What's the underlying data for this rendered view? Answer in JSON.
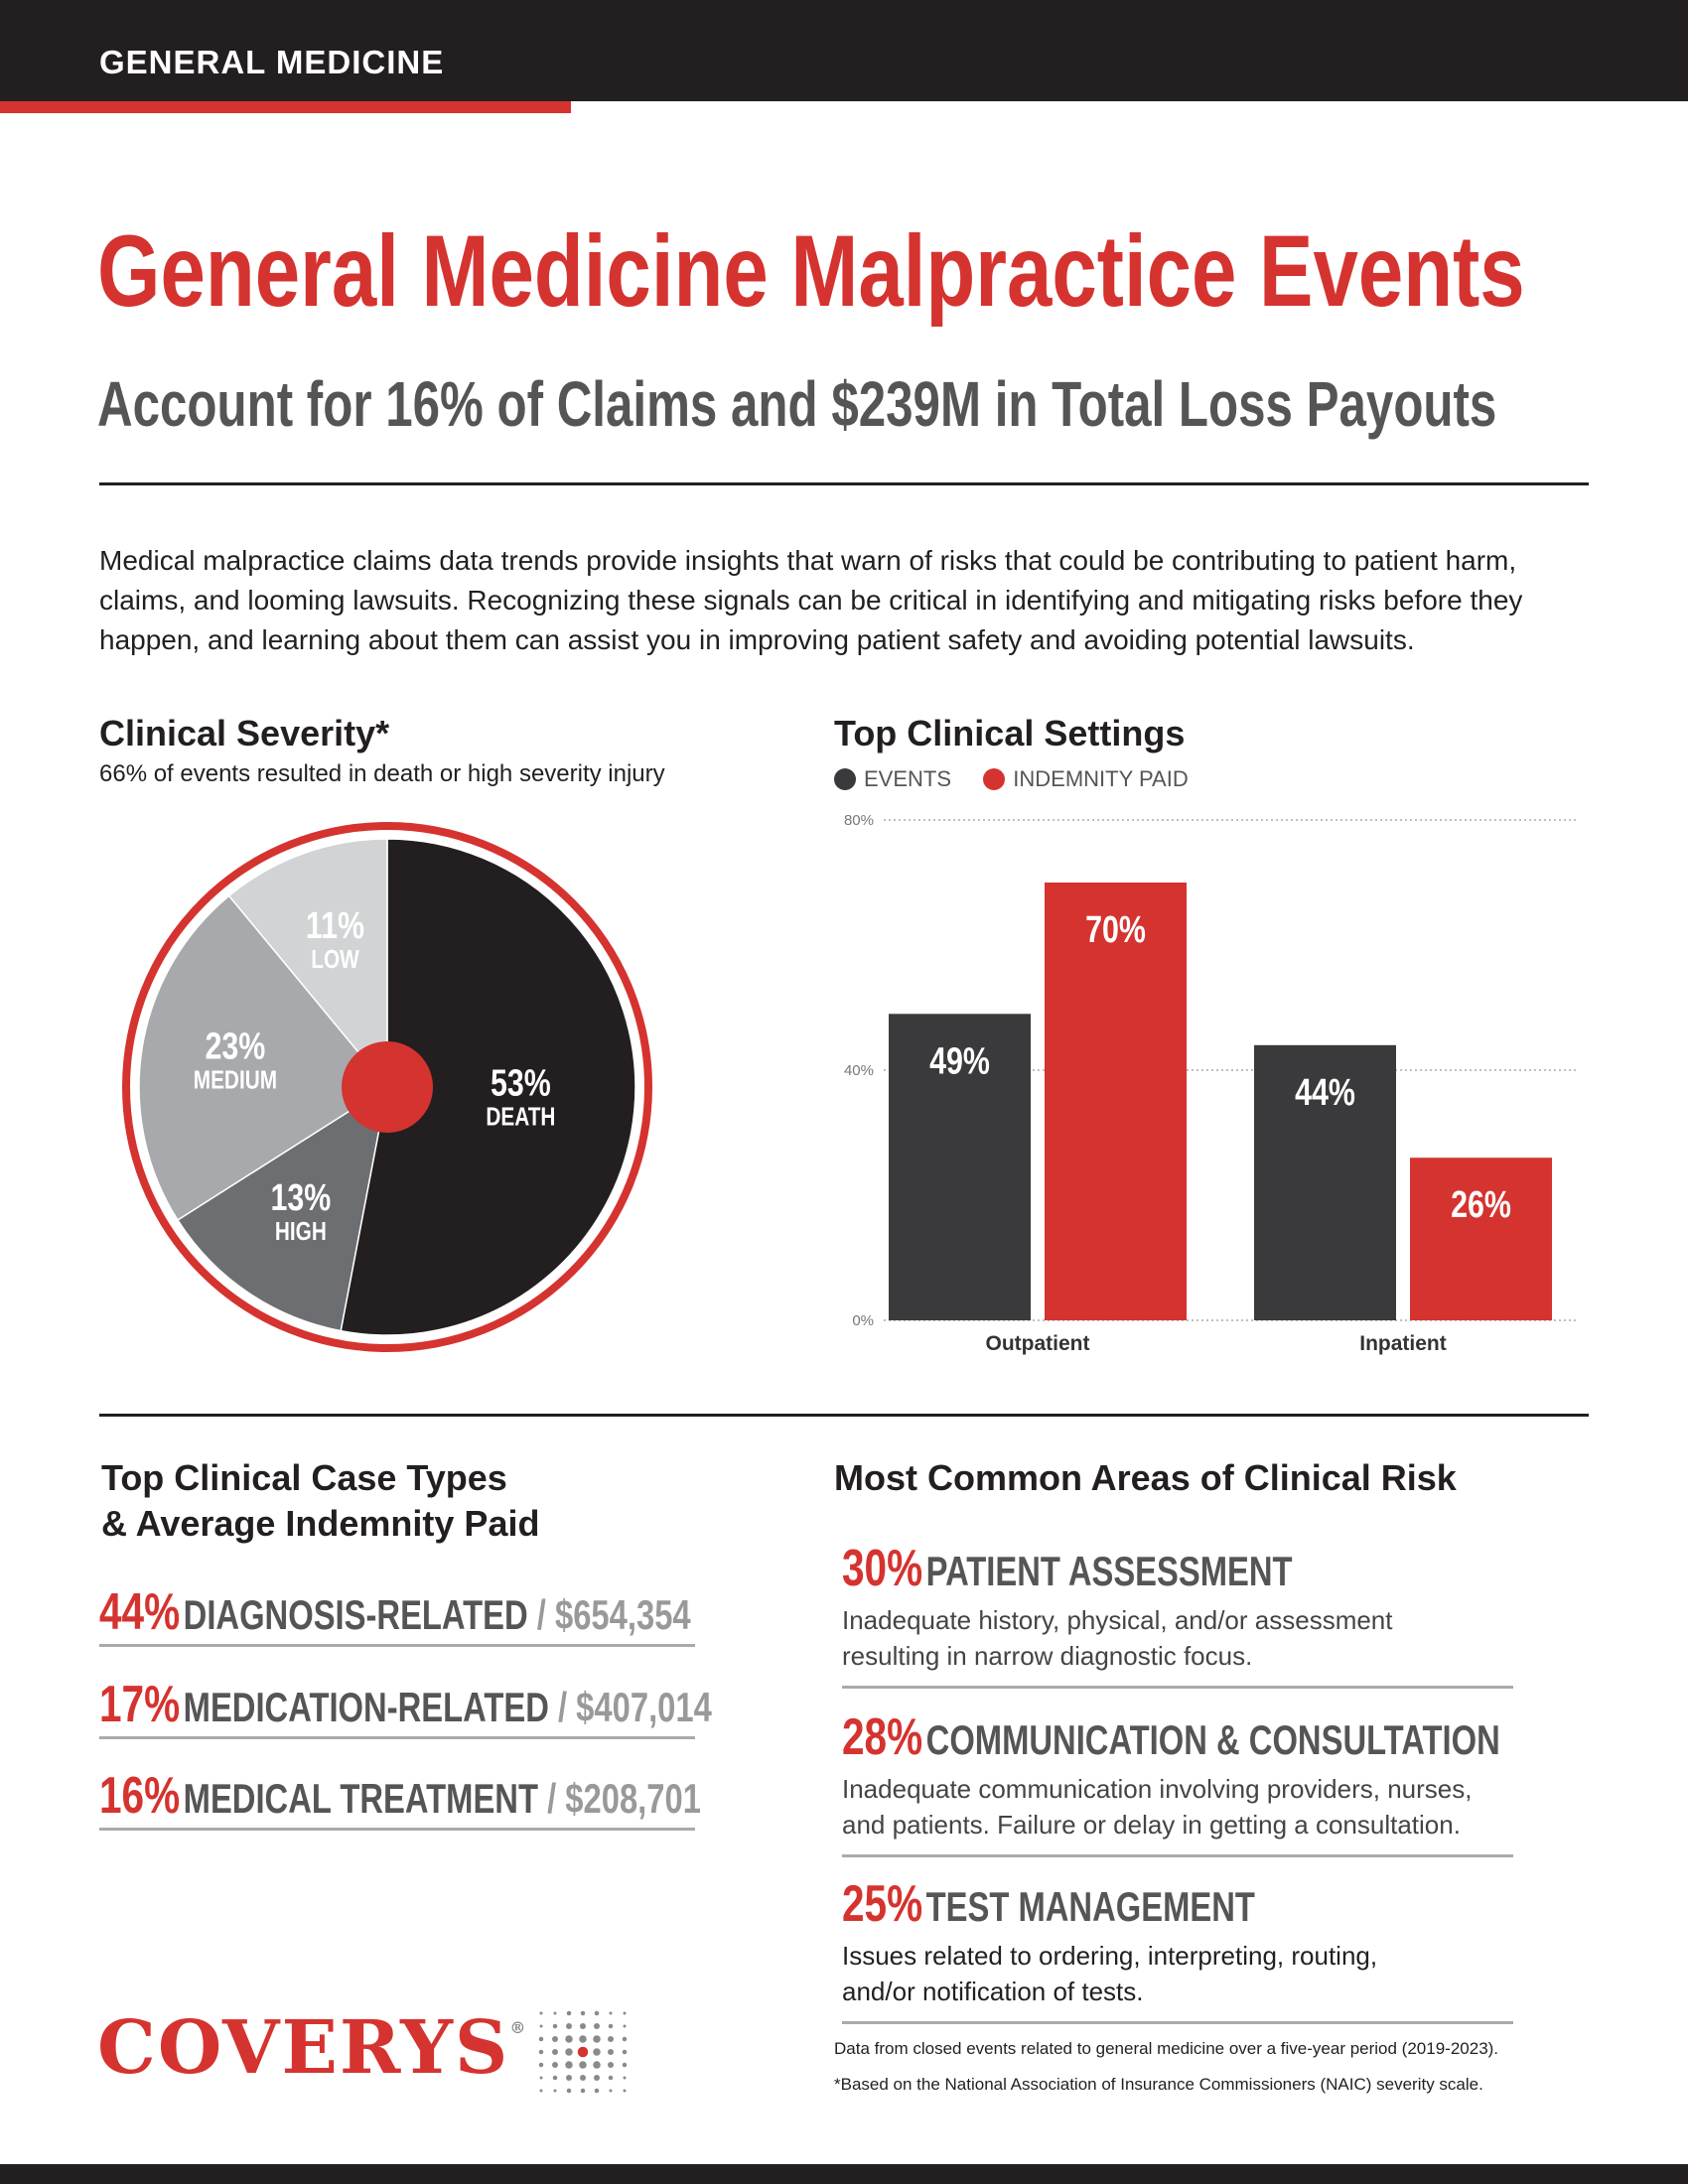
{
  "header": {
    "section_label": "GENERAL MEDICINE"
  },
  "headline": {
    "title": "General Medicine Malpractice Events",
    "subtitle": "Account for 16% of Claims and $239M in Total Loss Payouts"
  },
  "intro": "Medical malpractice claims data trends provide insights that warn of risks that could be contributing to patient harm, claims, and looming lawsuits. Recognizing these signals can be critical in identifying and mitigating risks before they happen, and learning about them can assist you in improving patient safety and avoiding potential lawsuits.",
  "colors": {
    "accent": "#d5332f",
    "dark": "#231f20",
    "bar_events": "#3a3a3c",
    "bar_indemnity": "#d5332f"
  },
  "severity": {
    "title": "Clinical Severity*",
    "subtitle": "66% of events resulted in death or high severity injury"
  },
  "settings": {
    "title": "Top Clinical Settings",
    "legend_events": "EVENTS",
    "legend_indemnity": "INDEMNITY PAID"
  },
  "chart_data": [
    {
      "type": "pie",
      "title": "Clinical Severity*",
      "categories": [
        "DEATH",
        "HIGH",
        "MEDIUM",
        "LOW"
      ],
      "values": [
        53,
        13,
        23,
        11
      ],
      "labels": [
        "53%",
        "13%",
        "23%",
        "11%"
      ],
      "colors": [
        "#231f20",
        "#6d6e71",
        "#a7a9ac",
        "#d1d3d4"
      ]
    },
    {
      "type": "bar",
      "title": "Top Clinical Settings",
      "categories": [
        "Outpatient",
        "Inpatient"
      ],
      "series": [
        {
          "name": "EVENTS",
          "values": [
            49,
            44
          ],
          "labels": [
            "49%",
            "44%"
          ]
        },
        {
          "name": "INDEMNITY PAID",
          "values": [
            70,
            26
          ],
          "labels": [
            "70%",
            "26%"
          ]
        }
      ],
      "yticks": [
        "80%",
        "40%",
        "0%"
      ],
      "ytick_values": [
        80,
        40,
        0
      ],
      "ylim": [
        0,
        80
      ]
    }
  ],
  "case_types": {
    "title_line1": "Top Clinical Case Types",
    "title_line2": "& Average Indemnity Paid",
    "items": [
      {
        "pct": "44%",
        "label": "DIAGNOSIS-RELATED",
        "sep": " / ",
        "amount": "$654,354"
      },
      {
        "pct": "17%",
        "label": "MEDICATION-RELATED",
        "sep": " / ",
        "amount": "$407,014"
      },
      {
        "pct": "16%",
        "label": "MEDICAL TREATMENT",
        "sep": " / ",
        "amount": "$208,701"
      }
    ]
  },
  "risk_areas": {
    "title": "Most Common Areas of Clinical Risk",
    "items": [
      {
        "pct": "30%",
        "label": "PATIENT ASSESSMENT",
        "line1": "Inadequate history, physical, and/or assessment",
        "line2": "resulting in narrow diagnostic focus."
      },
      {
        "pct": "28%",
        "label": "COMMUNICATION & CONSULTATION",
        "line1": "Inadequate communication involving providers, nurses,",
        "line2": "and patients. Failure or delay in getting a consultation."
      },
      {
        "pct": "25%",
        "label": "TEST MANAGEMENT",
        "line1": "Issues related to ordering, interpreting, routing,",
        "line2": "and/or notification of tests."
      }
    ]
  },
  "footer": {
    "logo": "COVERYS",
    "registered": "®",
    "note1": "Data from closed events related to general medicine over a five-year period (2019-2023).",
    "note2": "*Based on the National Association of Insurance Commissioners (NAIC) severity scale."
  }
}
